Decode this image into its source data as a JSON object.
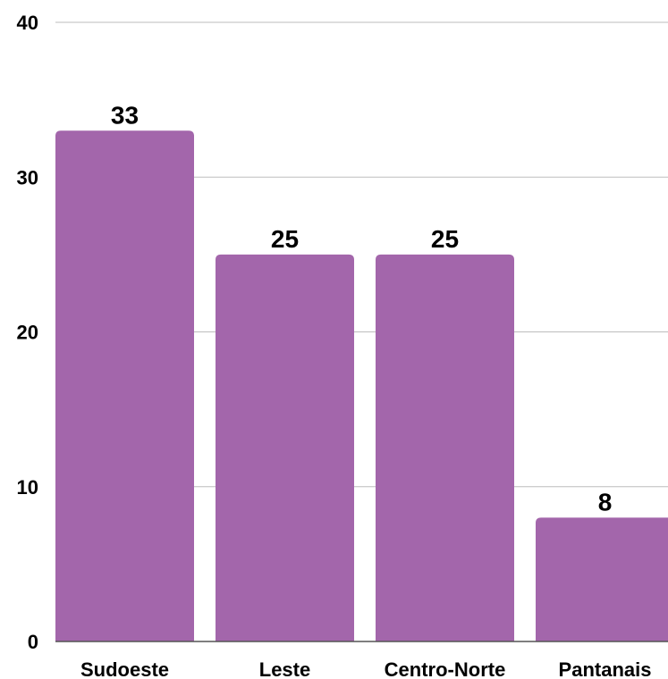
{
  "chart_data": {
    "type": "bar",
    "categories": [
      "Sudoeste",
      "Leste",
      "Centro-Norte",
      "Pantanais"
    ],
    "values": [
      33,
      25,
      25,
      8
    ],
    "data_labels": [
      "33",
      "25",
      "25",
      "8"
    ],
    "title": "",
    "xlabel": "",
    "ylabel": "",
    "ylim": [
      0,
      40
    ],
    "yticks": [
      0,
      10,
      20,
      30,
      40
    ],
    "ytick_labels": [
      "0",
      "10",
      "20",
      "30",
      "40"
    ],
    "grid": true,
    "legend": "none",
    "bar_color": "#a366ab",
    "grid_color": "#bdbdbd",
    "axis_color": "#555555"
  }
}
